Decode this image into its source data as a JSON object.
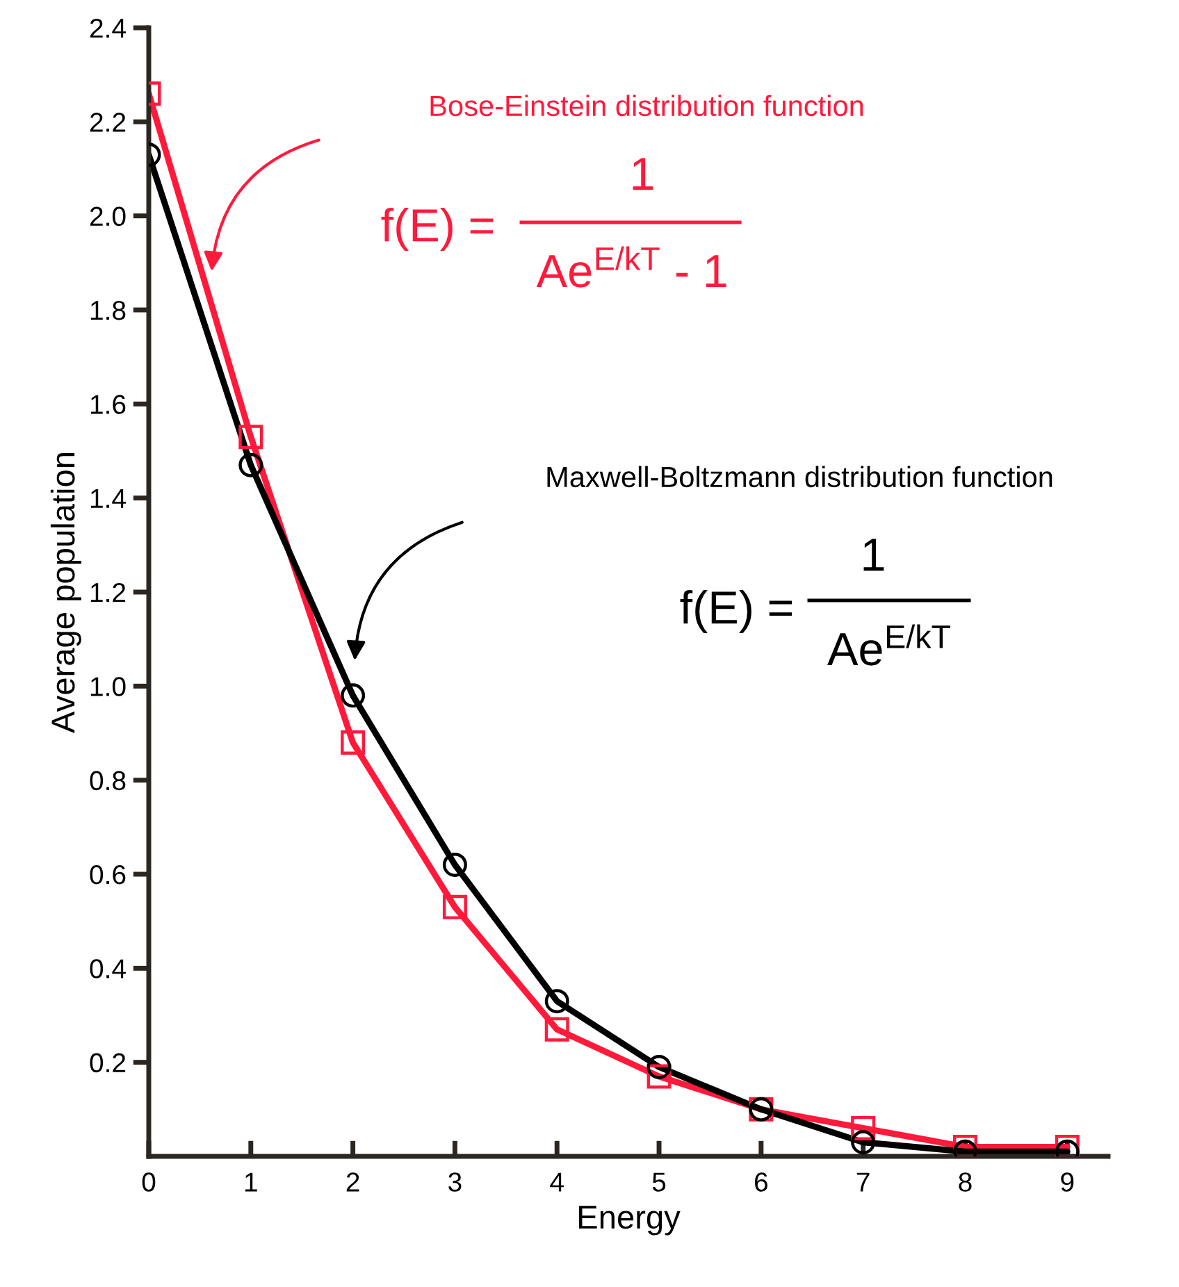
{
  "chart_data": {
    "type": "line",
    "xlabel": "Energy",
    "ylabel": "Average population",
    "x": [
      0,
      1,
      2,
      3,
      4,
      5,
      6,
      7,
      8,
      9
    ],
    "series": [
      {
        "color": "#ff1a3c",
        "marker": "square",
        "values": [
          2.26,
          1.53,
          0.88,
          0.53,
          0.27,
          0.17,
          0.1,
          0.06,
          0.02,
          0.02
        ]
      },
      {
        "color": "#000000",
        "marker": "circle",
        "values": [
          2.13,
          1.47,
          0.98,
          0.62,
          0.33,
          0.19,
          0.1,
          0.03,
          0.01,
          0.01
        ]
      }
    ],
    "xlim": [
      0,
      9.4
    ],
    "ylim": [
      0,
      2.4
    ],
    "xticks": [
      0,
      1,
      2,
      3,
      4,
      5,
      6,
      7,
      8,
      9
    ],
    "yticks": [
      0.2,
      0.4,
      0.6,
      0.8,
      {
        "value": 1.0,
        "label": "1.0"
      },
      1.2,
      1.4,
      1.6,
      1.8,
      {
        "value": 2.0,
        "label": "2.0"
      },
      2.2,
      2.4
    ],
    "line_style": "solid",
    "grid": false,
    "legend": false,
    "annotations": [
      "Bose-Einstein distribution function",
      "f(E) =",
      "1",
      "Ae$^{E/kT}$ - 1",
      "Maxwell-Boltzmann distribution function",
      "f(E) =",
      "1",
      "Ae$^{E/kT}$"
    ]
  }
}
